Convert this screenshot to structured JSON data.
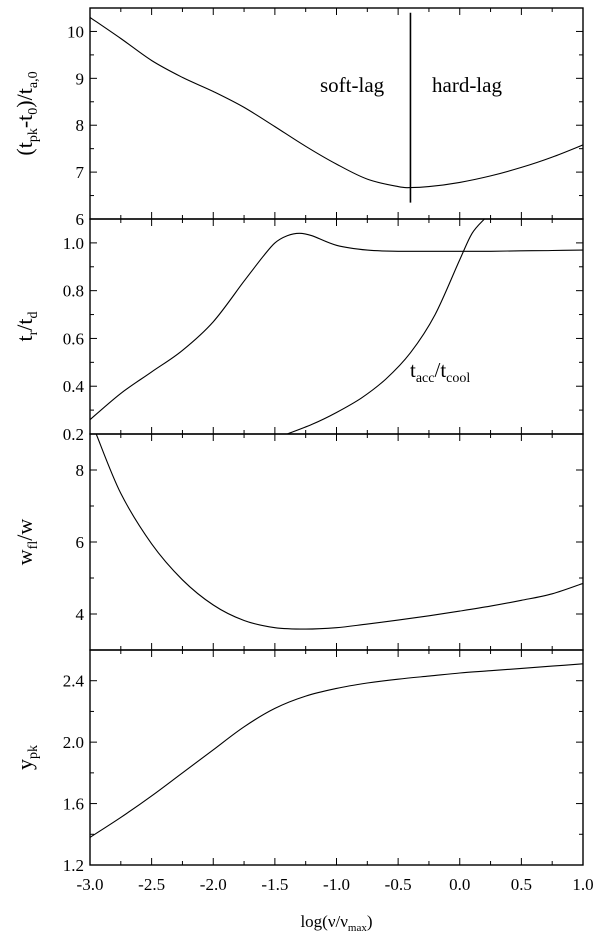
{
  "chart_data": [
    {
      "type": "line",
      "id": "p0",
      "ylabel_parts": [
        "(t",
        "pk",
        "-t",
        "0",
        ")/t",
        "a,0"
      ],
      "ylim": [
        6,
        10.5
      ],
      "yticks": [
        6,
        7,
        8,
        9,
        10
      ],
      "annotations": [
        {
          "text": "soft-lag"
        },
        {
          "text": "hard-lag"
        }
      ],
      "vline": {
        "x": -0.4,
        "y": [
          6.35,
          10.4
        ]
      },
      "series": [
        {
          "x": [
            -3.0,
            -2.75,
            -2.5,
            -2.25,
            -2.0,
            -1.75,
            -1.5,
            -1.25,
            -1.0,
            -0.75,
            -0.5,
            -0.4,
            -0.25,
            0.0,
            0.25,
            0.5,
            0.75,
            1.0
          ],
          "y": [
            10.3,
            9.85,
            9.38,
            9.02,
            8.72,
            8.38,
            7.97,
            7.55,
            7.17,
            6.85,
            6.69,
            6.67,
            6.69,
            6.78,
            6.92,
            7.1,
            7.32,
            7.58
          ]
        }
      ]
    },
    {
      "type": "line",
      "id": "p1",
      "ylabel_parts": [
        "t",
        "r",
        "/t",
        "d"
      ],
      "ylim": [
        0.2,
        1.1
      ],
      "yticks": [
        0.2,
        0.4,
        0.6,
        0.8,
        1.0
      ],
      "annotations": [
        {
          "parts": [
            "t",
            "acc",
            "/t",
            "cool"
          ]
        }
      ],
      "series": [
        {
          "x": [
            -3.0,
            -2.75,
            -2.5,
            -2.25,
            -2.0,
            -1.75,
            -1.6,
            -1.5,
            -1.4,
            -1.3,
            -1.2,
            -1.0,
            -0.75,
            -0.5,
            -0.25,
            0.0,
            0.25,
            0.5,
            0.75,
            1.0
          ],
          "y": [
            0.26,
            0.37,
            0.46,
            0.55,
            0.67,
            0.84,
            0.94,
            1.0,
            1.03,
            1.04,
            1.03,
            0.99,
            0.97,
            0.965,
            0.965,
            0.965,
            0.965,
            0.967,
            0.968,
            0.97
          ]
        },
        {
          "x": [
            -1.4,
            -1.2,
            -1.0,
            -0.8,
            -0.6,
            -0.4,
            -0.2,
            0.0,
            0.1,
            0.2
          ],
          "y": [
            0.2,
            0.24,
            0.29,
            0.35,
            0.43,
            0.54,
            0.7,
            0.93,
            1.04,
            1.1
          ]
        }
      ]
    },
    {
      "type": "line",
      "id": "p2",
      "ylabel_parts": [
        "w",
        "fl",
        "/w"
      ],
      "ylim": [
        3.0,
        9.0
      ],
      "yticks": [
        4,
        6,
        8
      ],
      "series": [
        {
          "x": [
            -2.95,
            -2.75,
            -2.5,
            -2.25,
            -2.0,
            -1.75,
            -1.5,
            -1.25,
            -1.0,
            -0.75,
            -0.5,
            -0.25,
            0.0,
            0.25,
            0.5,
            0.75,
            1.0
          ],
          "y": [
            9.0,
            7.35,
            5.95,
            4.95,
            4.25,
            3.82,
            3.62,
            3.58,
            3.62,
            3.72,
            3.83,
            3.95,
            4.08,
            4.22,
            4.38,
            4.56,
            4.85
          ]
        }
      ]
    },
    {
      "type": "line",
      "id": "p3",
      "ylabel_parts": [
        "y",
        "pk"
      ],
      "xlabel_parts": [
        "log(ν/ν",
        "max",
        ")"
      ],
      "ylim": [
        1.2,
        2.6
      ],
      "yticks": [
        1.2,
        1.6,
        2.0,
        2.4
      ],
      "xlim": [
        -3.0,
        1.0
      ],
      "xticks": [
        "-3.0",
        "-2.5",
        "-2.0",
        "-1.5",
        "-1.0",
        "-0.5",
        "0.0",
        "0.5",
        "1.0"
      ],
      "series": [
        {
          "x": [
            -3.0,
            -2.75,
            -2.5,
            -2.25,
            -2.0,
            -1.75,
            -1.5,
            -1.25,
            -1.0,
            -0.75,
            -0.5,
            -0.25,
            0.0,
            0.25,
            0.5,
            0.75,
            1.0
          ],
          "y": [
            1.38,
            1.51,
            1.65,
            1.8,
            1.95,
            2.1,
            2.22,
            2.3,
            2.35,
            2.385,
            2.41,
            2.43,
            2.45,
            2.465,
            2.48,
            2.495,
            2.51
          ]
        }
      ]
    }
  ]
}
